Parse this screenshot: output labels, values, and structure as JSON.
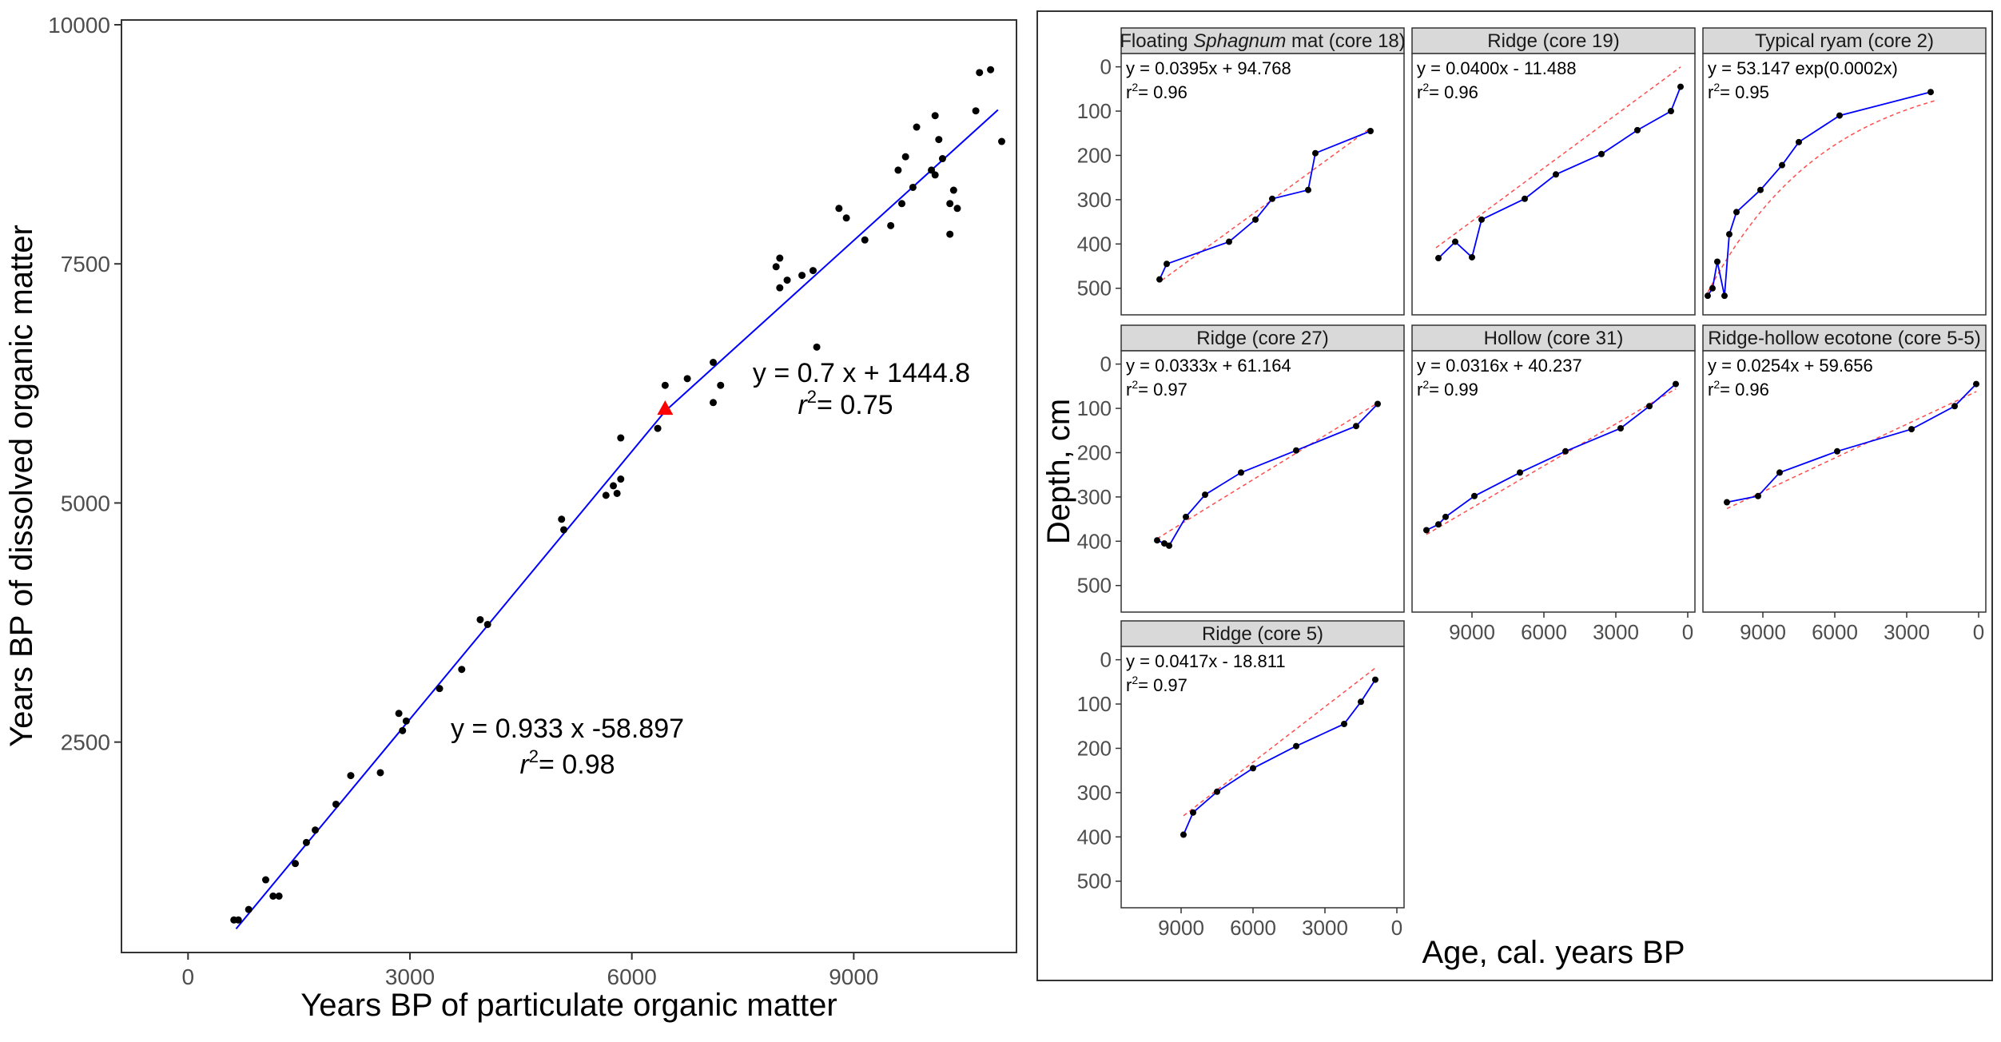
{
  "chart_data": [
    {
      "type": "scatter",
      "xlabel": "Years BP of particulate organic matter",
      "ylabel": "Years BP of dissolved organic matter",
      "xlim": [
        -900,
        11200
      ],
      "ylim": [
        300,
        10050
      ],
      "xticks": [
        0,
        3000,
        6000,
        9000
      ],
      "yticks": [
        2500,
        5000,
        7500,
        10000
      ],
      "ytick_labels": [
        "2500",
        "5000",
        "7500",
        "10000"
      ],
      "grid": false,
      "points": [
        [
          620,
          640
        ],
        [
          680,
          640
        ],
        [
          820,
          750
        ],
        [
          1050,
          1060
        ],
        [
          1150,
          890
        ],
        [
          1230,
          890
        ],
        [
          1450,
          1230
        ],
        [
          1600,
          1450
        ],
        [
          1720,
          1580
        ],
        [
          2000,
          1850
        ],
        [
          2200,
          2150
        ],
        [
          2600,
          2180
        ],
        [
          2850,
          2800
        ],
        [
          2900,
          2620
        ],
        [
          2950,
          2720
        ],
        [
          3400,
          3060
        ],
        [
          3700,
          3260
        ],
        [
          3950,
          3780
        ],
        [
          4050,
          3730
        ],
        [
          5050,
          4830
        ],
        [
          5080,
          4720
        ],
        [
          5650,
          5080
        ],
        [
          5750,
          5180
        ],
        [
          5800,
          5100
        ],
        [
          5850,
          5250
        ],
        [
          5850,
          5680
        ],
        [
          6350,
          5780
        ],
        [
          6450,
          6230
        ],
        [
          6750,
          6300
        ],
        [
          7100,
          6470
        ],
        [
          7100,
          6050
        ],
        [
          7200,
          6230
        ],
        [
          7950,
          7470
        ],
        [
          8000,
          7560
        ],
        [
          8000,
          7250
        ],
        [
          8100,
          7330
        ],
        [
          8300,
          7380
        ],
        [
          8450,
          7430
        ],
        [
          8500,
          6630
        ],
        [
          8800,
          8080
        ],
        [
          8900,
          7980
        ],
        [
          9150,
          7750
        ],
        [
          9500,
          7900
        ],
        [
          9600,
          8480
        ],
        [
          9650,
          8130
        ],
        [
          9700,
          8620
        ],
        [
          9800,
          8300
        ],
        [
          9850,
          8930
        ],
        [
          10050,
          8480
        ],
        [
          10100,
          8430
        ],
        [
          10100,
          9050
        ],
        [
          10150,
          8800
        ],
        [
          10200,
          8600
        ],
        [
          10300,
          8130
        ],
        [
          10300,
          7810
        ],
        [
          10350,
          8270
        ],
        [
          10400,
          8080
        ],
        [
          10650,
          9100
        ],
        [
          10700,
          9500
        ],
        [
          10850,
          9530
        ],
        [
          11000,
          8780
        ]
      ],
      "highlight_point": {
        "x": 6450,
        "y": 5980,
        "shape": "triangle",
        "color": "#ff0000"
      },
      "fit_lines": [
        {
          "label": "y = 0.933 x -58.897",
          "r2": "= 0.98",
          "slope": 0.933,
          "intercept": -58.897,
          "x_range": [
            650,
            6450
          ],
          "color": "#0000ff"
        },
        {
          "label": "y = 0.7 x + 1444.8",
          "r2": "= 0.75",
          "slope": 0.7,
          "intercept": 1444.8,
          "x_range": [
            6450,
            10950
          ],
          "color": "#0000ff"
        }
      ],
      "r_symbol": "r",
      "r_exponent": "2"
    },
    {
      "type": "line",
      "layout": "faceted",
      "xlabel": "Age, cal. years BP",
      "ylabel": "Depth, cm",
      "xlim": [
        11500,
        -300
      ],
      "ylim": [
        560,
        -30
      ],
      "xticks": [
        9000,
        6000,
        3000,
        0
      ],
      "xtick_labels": [
        "9000",
        "6000",
        "3000",
        "0"
      ],
      "yticks": [
        0,
        100,
        200,
        300,
        400,
        500
      ],
      "ytick_labels": [
        "0",
        "100",
        "200",
        "300",
        "400",
        "500"
      ],
      "line_color": "#0000ff",
      "fit_color": "#ff4d4d",
      "r2_prefix": "r",
      "r2_exp": "2",
      "panels": [
        {
          "title_before": "Floating ",
          "title_italic": "Sphagnum",
          "title_after": " mat (core 18)",
          "equation": "y = 0.0395x + 94.768",
          "r2_value": "= 0.96",
          "fit_type": "linear",
          "fit_range": [
            9800,
            1100
          ],
          "points": [
            [
              9900,
              480
            ],
            [
              9600,
              445
            ],
            [
              7000,
              395
            ],
            [
              5900,
              345
            ],
            [
              5200,
              298
            ],
            [
              3700,
              278
            ],
            [
              3400,
              195
            ],
            [
              1100,
              145
            ]
          ]
        },
        {
          "title_before": "Ridge (core 19)",
          "title_italic": "",
          "title_after": "",
          "equation": "y = 0.0400x - 11.488",
          "r2_value": "= 0.96",
          "fit_type": "linear",
          "fit_range": [
            10500,
            300
          ],
          "points": [
            [
              10400,
              432
            ],
            [
              9700,
              395
            ],
            [
              9000,
              430
            ],
            [
              8600,
              345
            ],
            [
              6800,
              298
            ],
            [
              5500,
              243
            ],
            [
              3600,
              197
            ],
            [
              2100,
              143
            ],
            [
              700,
              100
            ],
            [
              300,
              45
            ]
          ]
        },
        {
          "title_before": "Typical ryam (core 2)",
          "title_italic": "",
          "title_after": "",
          "equation": "y = 53.147 exp(0.0002x)",
          "r2_value": "= 0.95",
          "fit_type": "exp",
          "fit_a": 53.147,
          "fit_b": 0.0002,
          "fit_range": [
            11300,
            1800
          ],
          "points": [
            [
              11300,
              517
            ],
            [
              11100,
              500
            ],
            [
              10900,
              440
            ],
            [
              10600,
              517
            ],
            [
              10400,
              378
            ],
            [
              10100,
              328
            ],
            [
              9100,
              278
            ],
            [
              8200,
              222
            ],
            [
              7500,
              170
            ],
            [
              5800,
              110
            ],
            [
              2000,
              57
            ]
          ]
        },
        {
          "title_before": "Ridge (core 27)",
          "title_italic": "",
          "title_after": "",
          "equation": "y = 0.0333x + 61.164",
          "r2_value": "= 0.97",
          "fit_type": "linear",
          "fit_range": [
            10000,
            800
          ],
          "points": [
            [
              10000,
              398
            ],
            [
              9700,
              405
            ],
            [
              9500,
              410
            ],
            [
              8800,
              345
            ],
            [
              8000,
              295
            ],
            [
              6500,
              245
            ],
            [
              4200,
              195
            ],
            [
              1700,
              140
            ],
            [
              800,
              90
            ]
          ]
        },
        {
          "title_before": "Hollow (core 31)",
          "title_italic": "",
          "title_after": "",
          "equation": "y = 0.0316x + 40.237",
          "r2_value": "= 0.99",
          "fit_type": "linear",
          "fit_range": [
            10900,
            500
          ],
          "points": [
            [
              10900,
              375
            ],
            [
              10400,
              362
            ],
            [
              10100,
              345
            ],
            [
              8900,
              298
            ],
            [
              7000,
              245
            ],
            [
              5100,
              197
            ],
            [
              2800,
              145
            ],
            [
              1600,
              95
            ],
            [
              500,
              45
            ]
          ]
        },
        {
          "title_before": "Ridge-hollow ecotone (core 5-5)",
          "title_italic": "",
          "title_after": "",
          "equation": "y = 0.0254x + 59.656",
          "r2_value": "= 0.96",
          "fit_type": "linear",
          "fit_range": [
            10500,
            100
          ],
          "points": [
            [
              10500,
              312
            ],
            [
              9200,
              298
            ],
            [
              8300,
              245
            ],
            [
              5900,
              197
            ],
            [
              2800,
              147
            ],
            [
              1000,
              95
            ],
            [
              100,
              45
            ]
          ]
        },
        {
          "title_before": "Ridge (core 5)",
          "title_italic": "",
          "title_after": "",
          "equation": "y = 0.0417x - 18.811",
          "r2_value": "= 0.97",
          "fit_type": "linear",
          "fit_range": [
            8900,
            900
          ],
          "points": [
            [
              8900,
              395
            ],
            [
              8500,
              345
            ],
            [
              7500,
              298
            ],
            [
              6000,
              245
            ],
            [
              4200,
              195
            ],
            [
              2200,
              145
            ],
            [
              1500,
              95
            ],
            [
              900,
              45
            ]
          ]
        }
      ]
    }
  ]
}
